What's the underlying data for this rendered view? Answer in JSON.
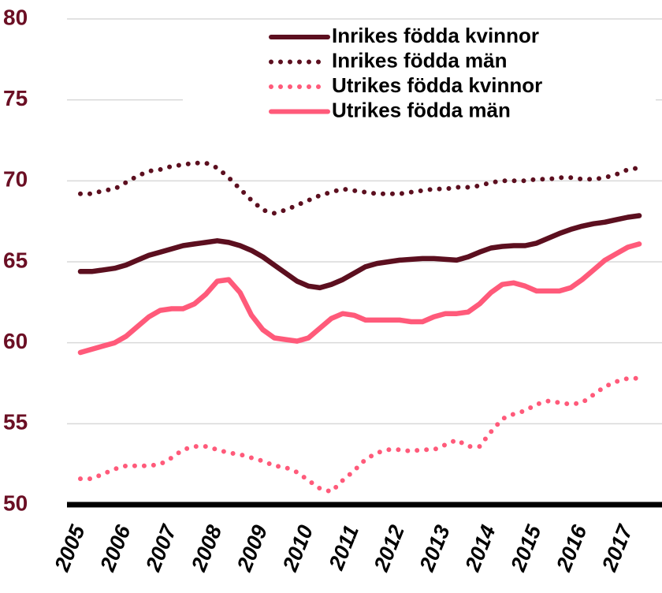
{
  "chart_data": {
    "type": "line",
    "x": [
      2005.25,
      2005.5,
      2005.75,
      2006,
      2006.25,
      2006.5,
      2006.75,
      2007,
      2007.25,
      2007.5,
      2007.75,
      2008,
      2008.25,
      2008.5,
      2008.75,
      2009,
      2009.25,
      2009.5,
      2009.75,
      2010,
      2010.25,
      2010.5,
      2010.75,
      2011,
      2011.25,
      2011.5,
      2011.75,
      2012,
      2012.25,
      2012.5,
      2012.75,
      2013,
      2013.25,
      2013.5,
      2013.75,
      2014,
      2014.25,
      2014.5,
      2014.75,
      2015,
      2015.25,
      2015.5,
      2015.75,
      2016,
      2016.25,
      2016.5,
      2016.75,
      2017,
      2017.25,
      2017.5
    ],
    "series": [
      {
        "name": "Inrikes födda kvinnor",
        "color": "#5c0f1f",
        "style": "solid",
        "values": [
          64.4,
          64.4,
          64.5,
          64.6,
          64.8,
          65.1,
          65.4,
          65.6,
          65.8,
          66.0,
          66.1,
          66.2,
          66.3,
          66.2,
          66.0,
          65.7,
          65.3,
          64.8,
          64.3,
          63.8,
          63.5,
          63.4,
          63.6,
          63.9,
          64.3,
          64.7,
          64.9,
          65.0,
          65.1,
          65.15,
          65.2,
          65.2,
          65.15,
          65.1,
          65.3,
          65.6,
          65.85,
          65.95,
          66.0,
          66.0,
          66.15,
          66.45,
          66.75,
          67.0,
          67.2,
          67.35,
          67.45,
          67.6,
          67.75,
          67.85
        ]
      },
      {
        "name": "Inrikes födda män",
        "color": "#5c0f1f",
        "style": "dotted",
        "values": [
          69.2,
          69.2,
          69.4,
          69.5,
          69.9,
          70.3,
          70.6,
          70.7,
          70.9,
          71.0,
          71.1,
          71.1,
          70.8,
          70.2,
          69.5,
          68.8,
          68.2,
          68.0,
          68.2,
          68.5,
          68.8,
          69.1,
          69.3,
          69.5,
          69.4,
          69.3,
          69.2,
          69.2,
          69.2,
          69.3,
          69.4,
          69.5,
          69.5,
          69.6,
          69.6,
          69.7,
          69.9,
          70.0,
          70.0,
          70.0,
          70.1,
          70.1,
          70.2,
          70.2,
          70.1,
          70.1,
          70.2,
          70.4,
          70.7,
          70.8
        ]
      },
      {
        "name": "Utrikes födda kvinnor",
        "color": "#ff5a7a",
        "style": "dotted",
        "values": [
          51.6,
          51.6,
          51.9,
          52.2,
          52.4,
          52.4,
          52.4,
          52.5,
          52.9,
          53.4,
          53.6,
          53.6,
          53.4,
          53.2,
          53.1,
          52.9,
          52.7,
          52.4,
          52.3,
          52.0,
          51.5,
          51.0,
          50.8,
          51.5,
          52.1,
          52.8,
          53.2,
          53.4,
          53.4,
          53.3,
          53.4,
          53.4,
          53.7,
          54.0,
          53.6,
          53.6,
          54.5,
          55.3,
          55.6,
          55.8,
          56.2,
          56.4,
          56.3,
          56.2,
          56.3,
          56.8,
          57.3,
          57.6,
          57.8,
          57.8
        ]
      },
      {
        "name": "Utrikes födda män",
        "color": "#ff5a7a",
        "style": "solid",
        "values": [
          59.4,
          59.6,
          59.8,
          60.0,
          60.4,
          61.0,
          61.6,
          62.0,
          62.1,
          62.1,
          62.4,
          63.0,
          63.8,
          63.9,
          63.1,
          61.7,
          60.8,
          60.3,
          60.2,
          60.1,
          60.3,
          60.9,
          61.5,
          61.8,
          61.7,
          61.4,
          61.4,
          61.4,
          61.4,
          61.3,
          61.3,
          61.6,
          61.8,
          61.8,
          61.9,
          62.4,
          63.1,
          63.6,
          63.7,
          63.5,
          63.2,
          63.2,
          63.2,
          63.4,
          63.9,
          64.5,
          65.1,
          65.5,
          65.9,
          66.1
        ]
      }
    ],
    "xlim": [
      2004.8,
      2018
    ],
    "xticks": [
      2005,
      2006,
      2007,
      2008,
      2009,
      2010,
      2011,
      2012,
      2013,
      2014,
      2015,
      2016,
      2017
    ],
    "ylim": [
      50,
      80
    ],
    "yticks": [
      50,
      55,
      60,
      65,
      70,
      75,
      80
    ],
    "grid": true,
    "legend": "top-right"
  }
}
